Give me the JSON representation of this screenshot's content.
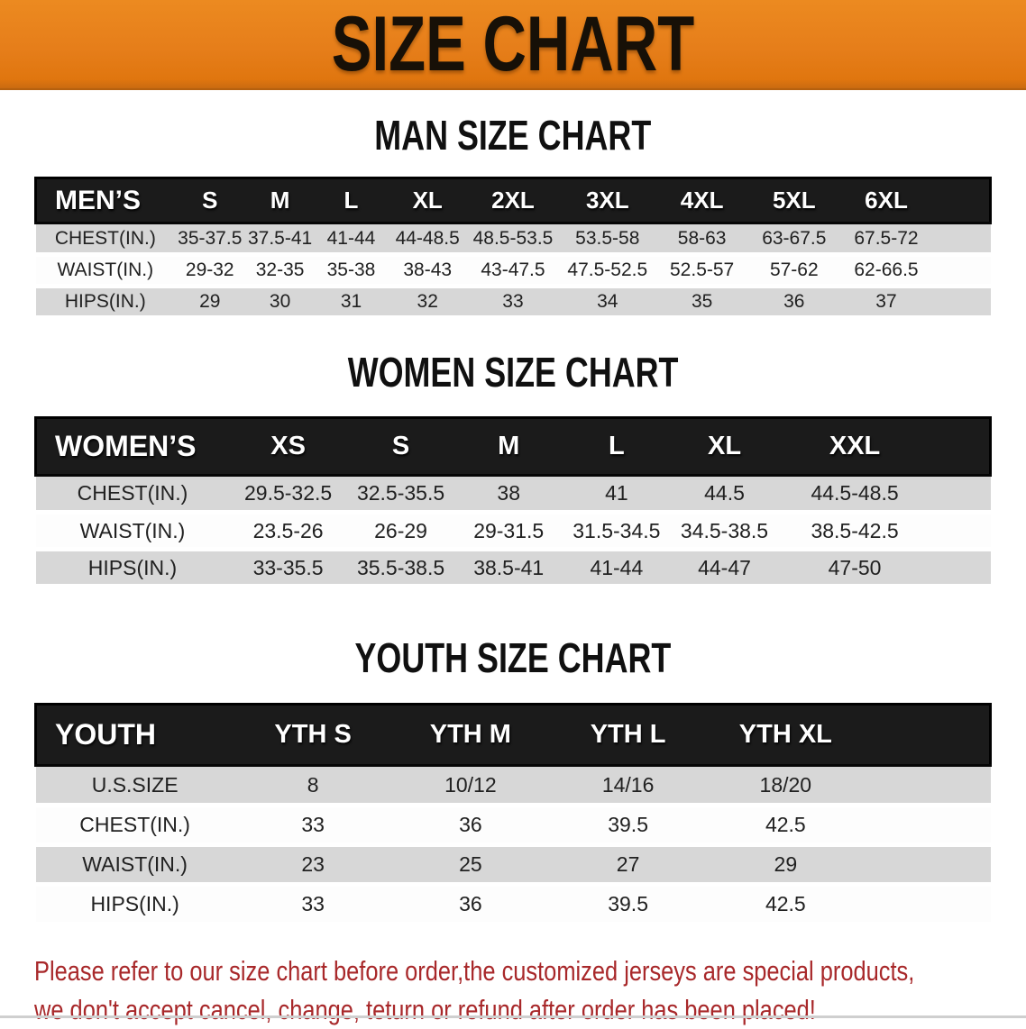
{
  "banner": {
    "title": "SIZE CHART",
    "bg_color": "#e67e1a",
    "text_color": "#171007"
  },
  "colors": {
    "header_bar": "#1b1b1b",
    "row_gray": "#d7d7d7",
    "row_white": "#fdfdfd",
    "note_red": "#a8282a"
  },
  "sections": [
    {
      "heading": "MAN SIZE CHART",
      "table": {
        "label_header": "MEN’S",
        "size_headers": [
          "S",
          "M",
          "L",
          "XL",
          "2XL",
          "3XL",
          "4XL",
          "5XL",
          "6XL"
        ],
        "rows": [
          {
            "label": "CHEST(IN.)",
            "values": [
              "35-37.5",
              "37.5-41",
              "41-44",
              "44-48.5",
              "48.5-53.5",
              "53.5-58",
              "58-63",
              "63-67.5",
              "67.5-72"
            ]
          },
          {
            "label": "WAIST(IN.)",
            "values": [
              "29-32",
              "32-35",
              "35-38",
              "38-43",
              "43-47.5",
              "47.5-52.5",
              "52.5-57",
              "57-62",
              "62-66.5"
            ]
          },
          {
            "label": "HIPS(IN.)",
            "values": [
              "29",
              "30",
              "31",
              "32",
              "33",
              "34",
              "35",
              "36",
              "37"
            ]
          }
        ]
      }
    },
    {
      "heading": "WOMEN SIZE CHART",
      "table": {
        "label_header": "WOMEN’S",
        "size_headers": [
          "XS",
          "S",
          "M",
          "L",
          "XL",
          "XXL"
        ],
        "rows": [
          {
            "label": "CHEST(IN.)",
            "values": [
              "29.5-32.5",
              "32.5-35.5",
              "38",
              "41",
              "44.5",
              "44.5-48.5"
            ]
          },
          {
            "label": "WAIST(IN.)",
            "values": [
              "23.5-26",
              "26-29",
              "29-31.5",
              "31.5-34.5",
              "34.5-38.5",
              "38.5-42.5"
            ]
          },
          {
            "label": "HIPS(IN.)",
            "values": [
              "33-35.5",
              "35.5-38.5",
              "38.5-41",
              "41-44",
              "44-47",
              "47-50"
            ]
          }
        ]
      }
    },
    {
      "heading": "YOUTH SIZE CHART",
      "table": {
        "label_header": "YOUTH",
        "size_headers": [
          "YTH S",
          "YTH M",
          "YTH L",
          "YTH XL"
        ],
        "rows": [
          {
            "label": "U.S.SIZE",
            "values": [
              "8",
              "10/12",
              "14/16",
              "18/20"
            ]
          },
          {
            "label": "CHEST(IN.)",
            "values": [
              "33",
              "36",
              "39.5",
              "42.5"
            ]
          },
          {
            "label": "WAIST(IN.)",
            "values": [
              "23",
              "25",
              "27",
              "29"
            ]
          },
          {
            "label": "HIPS(IN.)",
            "values": [
              "33",
              "36",
              "39.5",
              "42.5"
            ]
          }
        ]
      }
    }
  ],
  "note": {
    "lines": [
      "Please refer to our size chart before order,the customized jerseys are special products,",
      "we don't accept cancel, change, teturn or refund after order has been placed!"
    ]
  }
}
